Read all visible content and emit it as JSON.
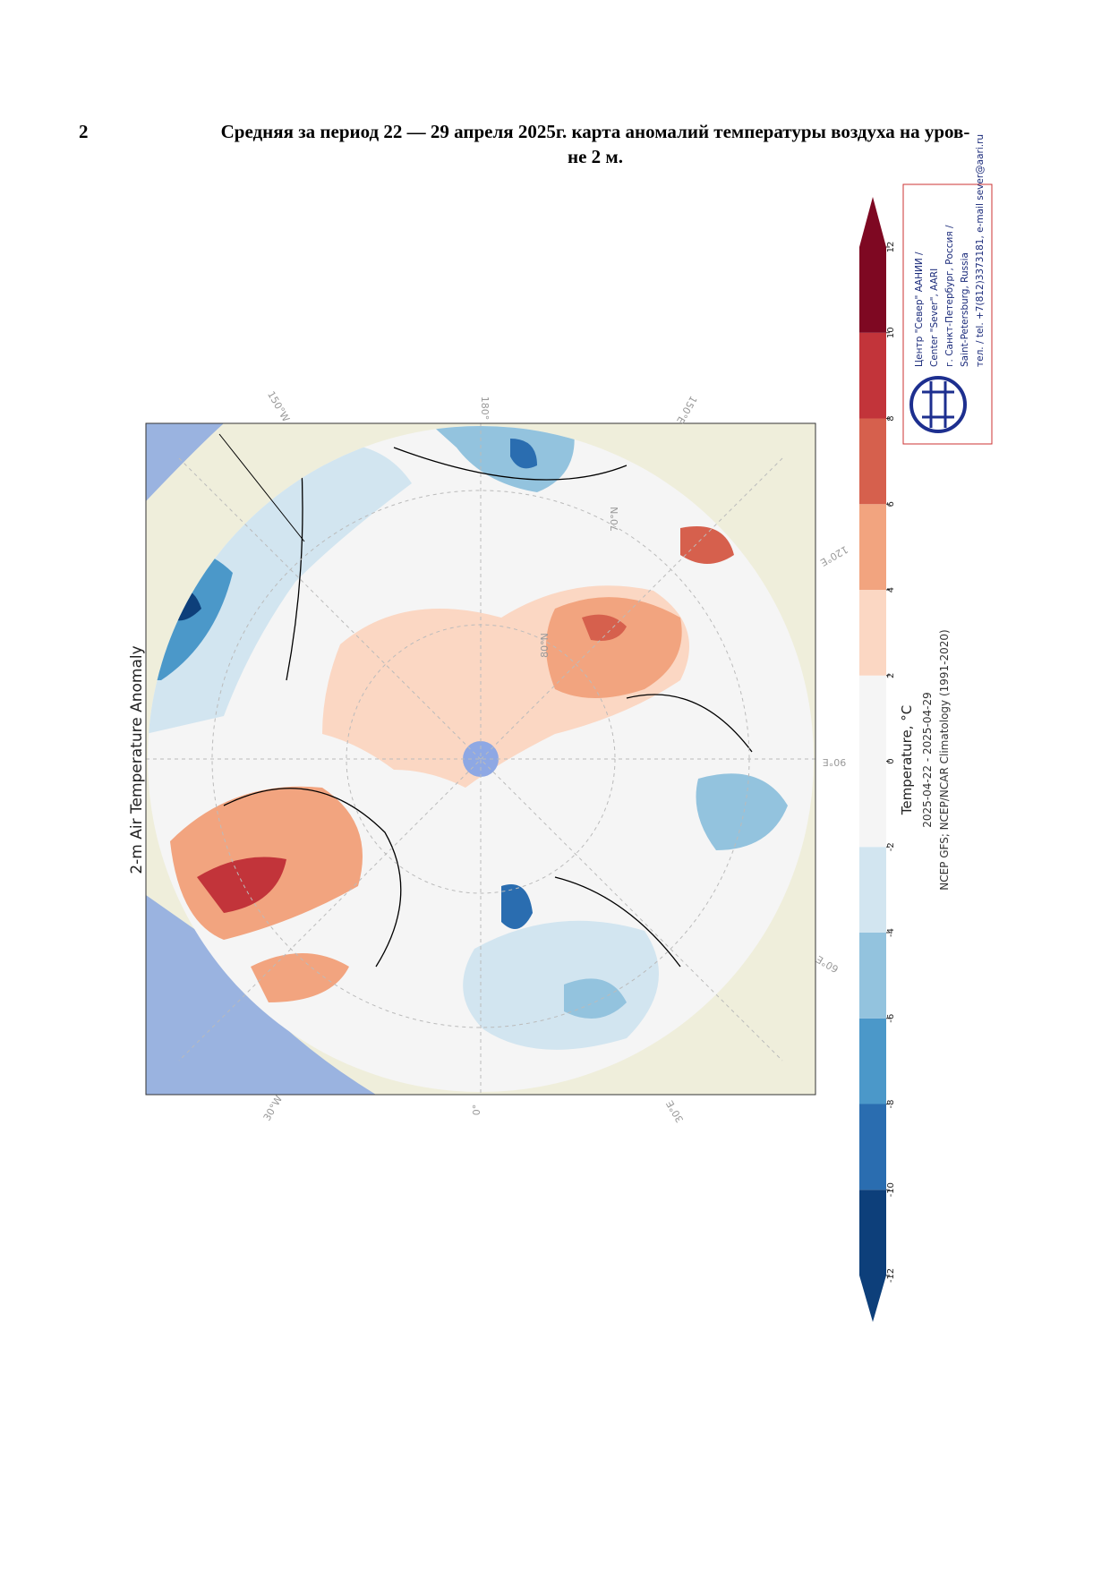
{
  "caption": {
    "number": "2",
    "lines": [
      "Средняя за период 22 — 29 апреля 2025г. карта аномалий температуры воздуха на уров-",
      "не 2 м."
    ]
  },
  "map": {
    "title": "2-m Air Temperature Anomaly",
    "longitudes": [
      "180°",
      "150°E",
      "120°E",
      "90°E",
      "60°E",
      "30°E",
      "0°",
      "30°W",
      "150°W"
    ],
    "latitudes": [
      "70°N",
      "80°N"
    ]
  },
  "colorbar": {
    "label": "Temperature, °C",
    "period": "2025-04-22 - 2025-04-29",
    "source": "NCEP GFS; NCEP/NCAR Climatology (1991-2020)",
    "ticks": [
      -12,
      -10,
      -8,
      -6,
      -4,
      -2,
      0,
      2,
      4,
      6,
      8,
      10,
      12
    ],
    "colors": [
      "#0d3f7a",
      "#2a6db0",
      "#4b98c9",
      "#93c3de",
      "#d2e5f0",
      "#f5f5f5",
      "#f5f5f5",
      "#fbd7c3",
      "#f2a47f",
      "#d6604d",
      "#c2343a",
      "#7e0822"
    ]
  },
  "logo": {
    "lines": [
      "Центр \"Север\" ААНИИ /",
      "Center \"Sever\", AARI",
      "г. Санкт-Петербург, Россия /",
      "Saint-Petersburg, Russia",
      "тел. / tel. +7(812)3373181, e-mail sever@aari.ru"
    ]
  }
}
